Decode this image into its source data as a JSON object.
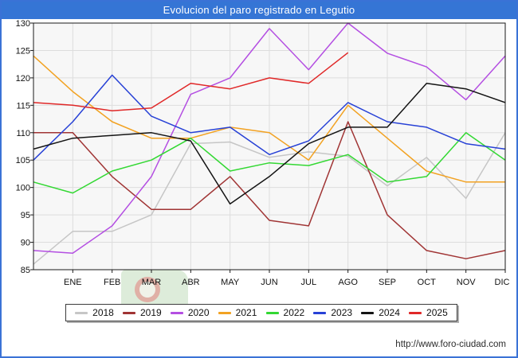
{
  "window": {
    "title": "Evolucion del paro registrado en Legutio"
  },
  "footer": {
    "url": "http://www.foro-ciudad.com"
  },
  "colors": {
    "frame_border": "#3a72d6",
    "titlebar_bg": "#3575d5",
    "titlebar_text": "#ffffff",
    "plot_bg": "#f7f7f7",
    "grid": "#dddddd",
    "spine": "#1a1a1a",
    "tick": "#1a1a1a"
  },
  "chart_data": {
    "type": "line",
    "title": "Evolucion del paro registrado en Legutio",
    "xlabel": "",
    "ylabel": "",
    "ylim": [
      85,
      130
    ],
    "grid": true,
    "legend_position": "bottom",
    "months": [
      "ENE",
      "FEB",
      "MAR",
      "ABR",
      "MAY",
      "JUN",
      "JUL",
      "AGO",
      "SEP",
      "OCT",
      "NOV",
      "DIC"
    ],
    "y_ticks": [
      130,
      125,
      120,
      115,
      110,
      105,
      100,
      95,
      90,
      85
    ],
    "values_note": "Each series has 13 points: the first is plotted on the left axis (December of previous year), followed by ENE..DIC. 2025 ends at AGO.",
    "series": [
      {
        "name": "2018",
        "color": "#c6c6c6",
        "values": [
          86,
          92,
          92,
          95,
          108,
          108.3,
          105.5,
          106.5,
          105.7,
          100.3,
          105.5,
          98,
          110
        ]
      },
      {
        "name": "2019",
        "color": "#a03434",
        "values": [
          110,
          110,
          102,
          96,
          96,
          102,
          94,
          93,
          112,
          95,
          88.5,
          87,
          88.5
        ]
      },
      {
        "name": "2020",
        "color": "#b44fe2",
        "values": [
          88.5,
          88,
          93,
          102,
          117,
          120,
          129,
          121.5,
          130,
          124.5,
          122,
          116,
          124
        ]
      },
      {
        "name": "2021",
        "color": "#f2a222",
        "values": [
          124,
          117.5,
          112,
          109,
          109,
          111,
          110,
          105,
          115,
          109,
          103,
          101,
          101
        ]
      },
      {
        "name": "2022",
        "color": "#33d833",
        "values": [
          101,
          99,
          103,
          105,
          109,
          103,
          104.5,
          104,
          106,
          101,
          102,
          110,
          105
        ]
      },
      {
        "name": "2023",
        "color": "#2741d6",
        "values": [
          105,
          112,
          120.5,
          113,
          110,
          111,
          106,
          108.5,
          115.5,
          112,
          111,
          108,
          107
        ]
      },
      {
        "name": "2024",
        "color": "#141414",
        "values": [
          107,
          109,
          109.5,
          110,
          108.5,
          97,
          102,
          108,
          111,
          111,
          119,
          118,
          115.5
        ]
      },
      {
        "name": "2025",
        "color": "#e02828",
        "values": [
          115.5,
          115,
          114,
          114.5,
          119,
          118,
          120,
          119,
          124.6
        ]
      }
    ]
  }
}
